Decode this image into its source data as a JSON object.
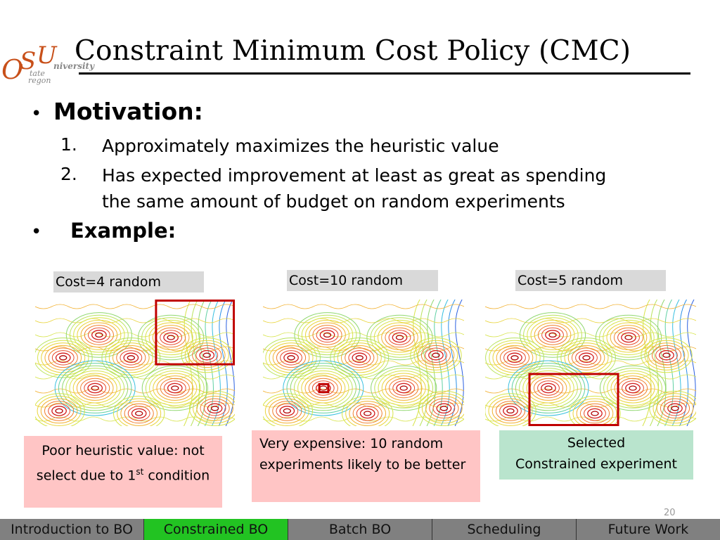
{
  "logo": {
    "letters": "OSU",
    "word_university": "niversity",
    "word_state": "tate",
    "word_oregon": "regon"
  },
  "title": "Constraint Minimum Cost Policy (CMC)",
  "motivation": {
    "bullet": "•",
    "heading": "Motivation:",
    "items": [
      {
        "num": "1.",
        "lines": [
          "Approximately maximizes the heuristic value"
        ]
      },
      {
        "num": "2.",
        "lines": [
          "Has expected improvement at least as great as spending",
          "the same amount of budget on random experiments"
        ]
      }
    ]
  },
  "example": {
    "bullet": "•",
    "heading": "Example:"
  },
  "panels": [
    {
      "cost_label": "Cost=4 random",
      "caption": {
        "pre": "Poor heuristic value: not select due to 1",
        "sup": "st",
        "post": " condition"
      }
    },
    {
      "cost_label": "Cost=10 random",
      "caption": {
        "text": "Very expensive: 10 random experiments likely to be better"
      }
    },
    {
      "cost_label": "Cost=5 random",
      "caption": {
        "line1": "Selected",
        "line2": "Constrained experiment"
      }
    }
  ],
  "page_number": "20",
  "nav": [
    {
      "label": "Introduction to BO",
      "active": false
    },
    {
      "label": "Constrained BO",
      "active": true
    },
    {
      "label": "Batch BO",
      "active": false
    },
    {
      "label": "Scheduling",
      "active": false
    },
    {
      "label": "Future Work",
      "active": false
    }
  ],
  "colors": {
    "accent_active": "#22c322",
    "nav_bg": "#808080",
    "caption_red": "#ffc5c5",
    "caption_green": "#b9e4cd",
    "selection_box": "#c00000"
  }
}
